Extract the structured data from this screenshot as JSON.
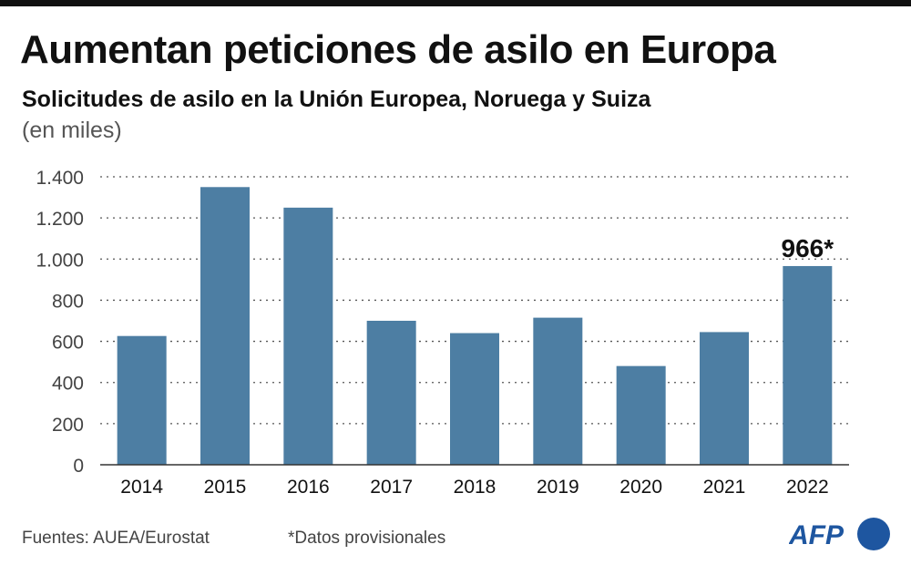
{
  "title": "Aumentan peticiones de asilo en Europa",
  "subtitle": "Solicitudes de asilo en la Unión Europea, Noruega y Suiza",
  "unit": "(en miles)",
  "source": "Fuentes: AUEA/Eurostat",
  "note": "*Datos provisionales",
  "logo": "AFP",
  "colors": {
    "bar": "#4d7ea3",
    "logo": "#1e56a0"
  },
  "chart_data": {
    "type": "bar",
    "categories": [
      "2014",
      "2015",
      "2016",
      "2017",
      "2018",
      "2019",
      "2020",
      "2021",
      "2022"
    ],
    "values": [
      626,
      1350,
      1250,
      700,
      640,
      715,
      480,
      645,
      966
    ],
    "ylim": [
      0,
      1400
    ],
    "yticks": [
      0,
      200,
      400,
      600,
      800,
      1000,
      1200,
      1400
    ],
    "ytick_labels": [
      "0",
      "200",
      "400",
      "600",
      "800",
      "1.000",
      "1.200",
      "1.400"
    ],
    "grid": true,
    "annotations": [
      {
        "category": "2022",
        "text": "966*"
      }
    ]
  }
}
